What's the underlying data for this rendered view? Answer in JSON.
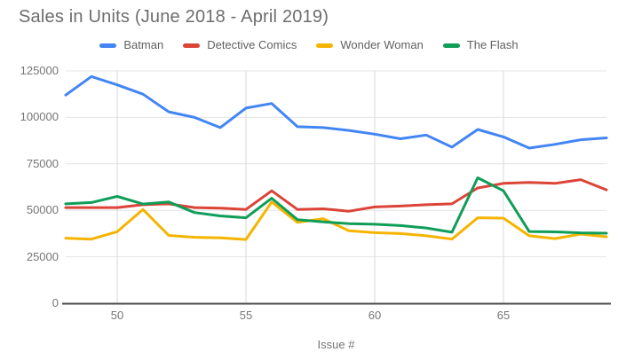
{
  "title": "Sales in Units (June 2018 - April 2019)",
  "chart_data": {
    "type": "line",
    "title": "Sales in Units (June 2018 - April 2019)",
    "xlabel": "Issue #",
    "ylabel": "",
    "xlim": [
      48,
      69
    ],
    "ylim": [
      0,
      125000
    ],
    "grid": true,
    "legend_position": "top",
    "x": [
      48,
      49,
      50,
      51,
      52,
      53,
      54,
      55,
      56,
      57,
      58,
      59,
      60,
      61,
      62,
      63,
      64,
      65,
      66,
      67,
      68,
      69
    ],
    "xticks": [
      50,
      55,
      60,
      65
    ],
    "xtick_labels": [
      "50",
      "55",
      "60",
      "65"
    ],
    "yticks": [
      0,
      25000,
      50000,
      75000,
      100000,
      125000
    ],
    "ytick_labels": [
      "0",
      "25000",
      "50000",
      "75000",
      "100000",
      "125000"
    ],
    "series": [
      {
        "name": "Batman",
        "color": "#4285F4",
        "values": [
          112000,
          122000,
          117500,
          112500,
          103000,
          100000,
          94500,
          105000,
          107500,
          95000,
          94500,
          93000,
          91000,
          88500,
          90500,
          84000,
          93500,
          89500,
          83500,
          85500,
          88000,
          89000
        ]
      },
      {
        "name": "Detective Comics",
        "color": "#DB4437",
        "values": [
          51500,
          51500,
          51500,
          53000,
          53500,
          51500,
          51200,
          50500,
          60500,
          50500,
          50800,
          49500,
          51800,
          52300,
          53000,
          53500,
          62000,
          64500,
          65000,
          64500,
          66500,
          61000
        ]
      },
      {
        "name": "Wonder Woman",
        "color": "#F4B400",
        "values": [
          35000,
          34500,
          38500,
          50500,
          36500,
          35500,
          35200,
          34300,
          54500,
          43500,
          45500,
          39000,
          38000,
          37500,
          36300,
          34500,
          46000,
          45800,
          36300,
          34800,
          37200,
          35800
        ]
      },
      {
        "name": "The Flash",
        "color": "#0F9D58",
        "values": [
          53500,
          54200,
          57500,
          53400,
          54500,
          48800,
          47000,
          46000,
          56500,
          45000,
          43800,
          42800,
          42500,
          41800,
          40500,
          38200,
          67500,
          60500,
          38600,
          38400,
          37900,
          37700
        ]
      }
    ]
  },
  "styles": {
    "h_gridline_color": "#e4e4e4",
    "v_gridline_color": "#dadada",
    "axis_line_color": "#4a4a4a"
  }
}
